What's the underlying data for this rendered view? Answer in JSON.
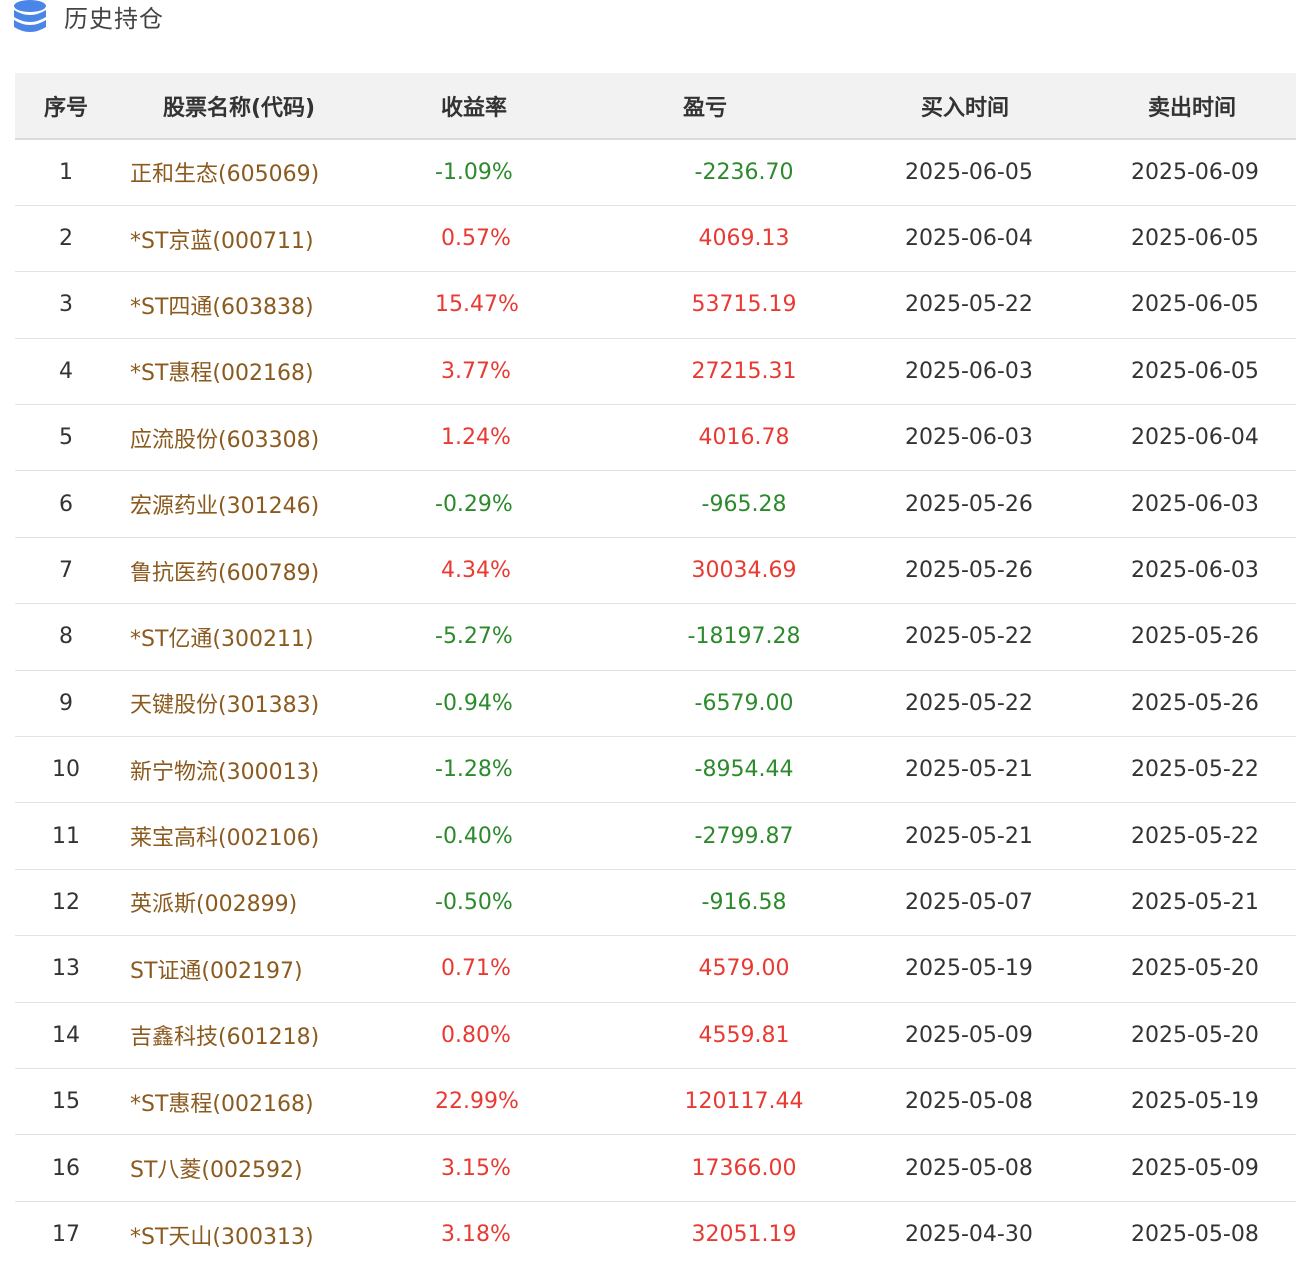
{
  "header": {
    "title": "历史持仓",
    "icon": "database-icon",
    "icon_color": "#4a86e8"
  },
  "table": {
    "columns": [
      "序号",
      "股票名称(代码)",
      "收益率",
      "盈亏",
      "买入时间",
      "卖出时间"
    ],
    "colors": {
      "positive": "#e83a32",
      "negative": "#2c8a2c",
      "stock_name": "#8b5a1f"
    },
    "rows": [
      {
        "no": "1",
        "name": "正和生态(605069)",
        "return": "-1.09%",
        "pnl": "-2236.70",
        "buy": "2025-06-05",
        "sell": "2025-06-09",
        "sign": "neg"
      },
      {
        "no": "2",
        "name": "*ST京蓝(000711)",
        "return": "0.57%",
        "pnl": "4069.13",
        "buy": "2025-06-04",
        "sell": "2025-06-05",
        "sign": "pos"
      },
      {
        "no": "3",
        "name": "*ST四通(603838)",
        "return": "15.47%",
        "pnl": "53715.19",
        "buy": "2025-05-22",
        "sell": "2025-06-05",
        "sign": "pos"
      },
      {
        "no": "4",
        "name": "*ST惠程(002168)",
        "return": "3.77%",
        "pnl": "27215.31",
        "buy": "2025-06-03",
        "sell": "2025-06-05",
        "sign": "pos"
      },
      {
        "no": "5",
        "name": "应流股份(603308)",
        "return": "1.24%",
        "pnl": "4016.78",
        "buy": "2025-06-03",
        "sell": "2025-06-04",
        "sign": "pos"
      },
      {
        "no": "6",
        "name": "宏源药业(301246)",
        "return": "-0.29%",
        "pnl": "-965.28",
        "buy": "2025-05-26",
        "sell": "2025-06-03",
        "sign": "neg"
      },
      {
        "no": "7",
        "name": "鲁抗医药(600789)",
        "return": "4.34%",
        "pnl": "30034.69",
        "buy": "2025-05-26",
        "sell": "2025-06-03",
        "sign": "pos"
      },
      {
        "no": "8",
        "name": "*ST亿通(300211)",
        "return": "-5.27%",
        "pnl": "-18197.28",
        "buy": "2025-05-22",
        "sell": "2025-05-26",
        "sign": "neg"
      },
      {
        "no": "9",
        "name": "天键股份(301383)",
        "return": "-0.94%",
        "pnl": "-6579.00",
        "buy": "2025-05-22",
        "sell": "2025-05-26",
        "sign": "neg"
      },
      {
        "no": "10",
        "name": "新宁物流(300013)",
        "return": "-1.28%",
        "pnl": "-8954.44",
        "buy": "2025-05-21",
        "sell": "2025-05-22",
        "sign": "neg"
      },
      {
        "no": "11",
        "name": "莱宝高科(002106)",
        "return": "-0.40%",
        "pnl": "-2799.87",
        "buy": "2025-05-21",
        "sell": "2025-05-22",
        "sign": "neg"
      },
      {
        "no": "12",
        "name": "英派斯(002899)",
        "return": "-0.50%",
        "pnl": "-916.58",
        "buy": "2025-05-07",
        "sell": "2025-05-21",
        "sign": "neg"
      },
      {
        "no": "13",
        "name": "ST证通(002197)",
        "return": "0.71%",
        "pnl": "4579.00",
        "buy": "2025-05-19",
        "sell": "2025-05-20",
        "sign": "pos"
      },
      {
        "no": "14",
        "name": "吉鑫科技(601218)",
        "return": "0.80%",
        "pnl": "4559.81",
        "buy": "2025-05-09",
        "sell": "2025-05-20",
        "sign": "pos"
      },
      {
        "no": "15",
        "name": "*ST惠程(002168)",
        "return": "22.99%",
        "pnl": "120117.44",
        "buy": "2025-05-08",
        "sell": "2025-05-19",
        "sign": "pos"
      },
      {
        "no": "16",
        "name": "ST八菱(002592)",
        "return": "3.15%",
        "pnl": "17366.00",
        "buy": "2025-05-08",
        "sell": "2025-05-09",
        "sign": "pos"
      },
      {
        "no": "17",
        "name": "*ST天山(300313)",
        "return": "3.18%",
        "pnl": "32051.19",
        "buy": "2025-04-30",
        "sell": "2025-05-08",
        "sign": "pos"
      }
    ]
  }
}
